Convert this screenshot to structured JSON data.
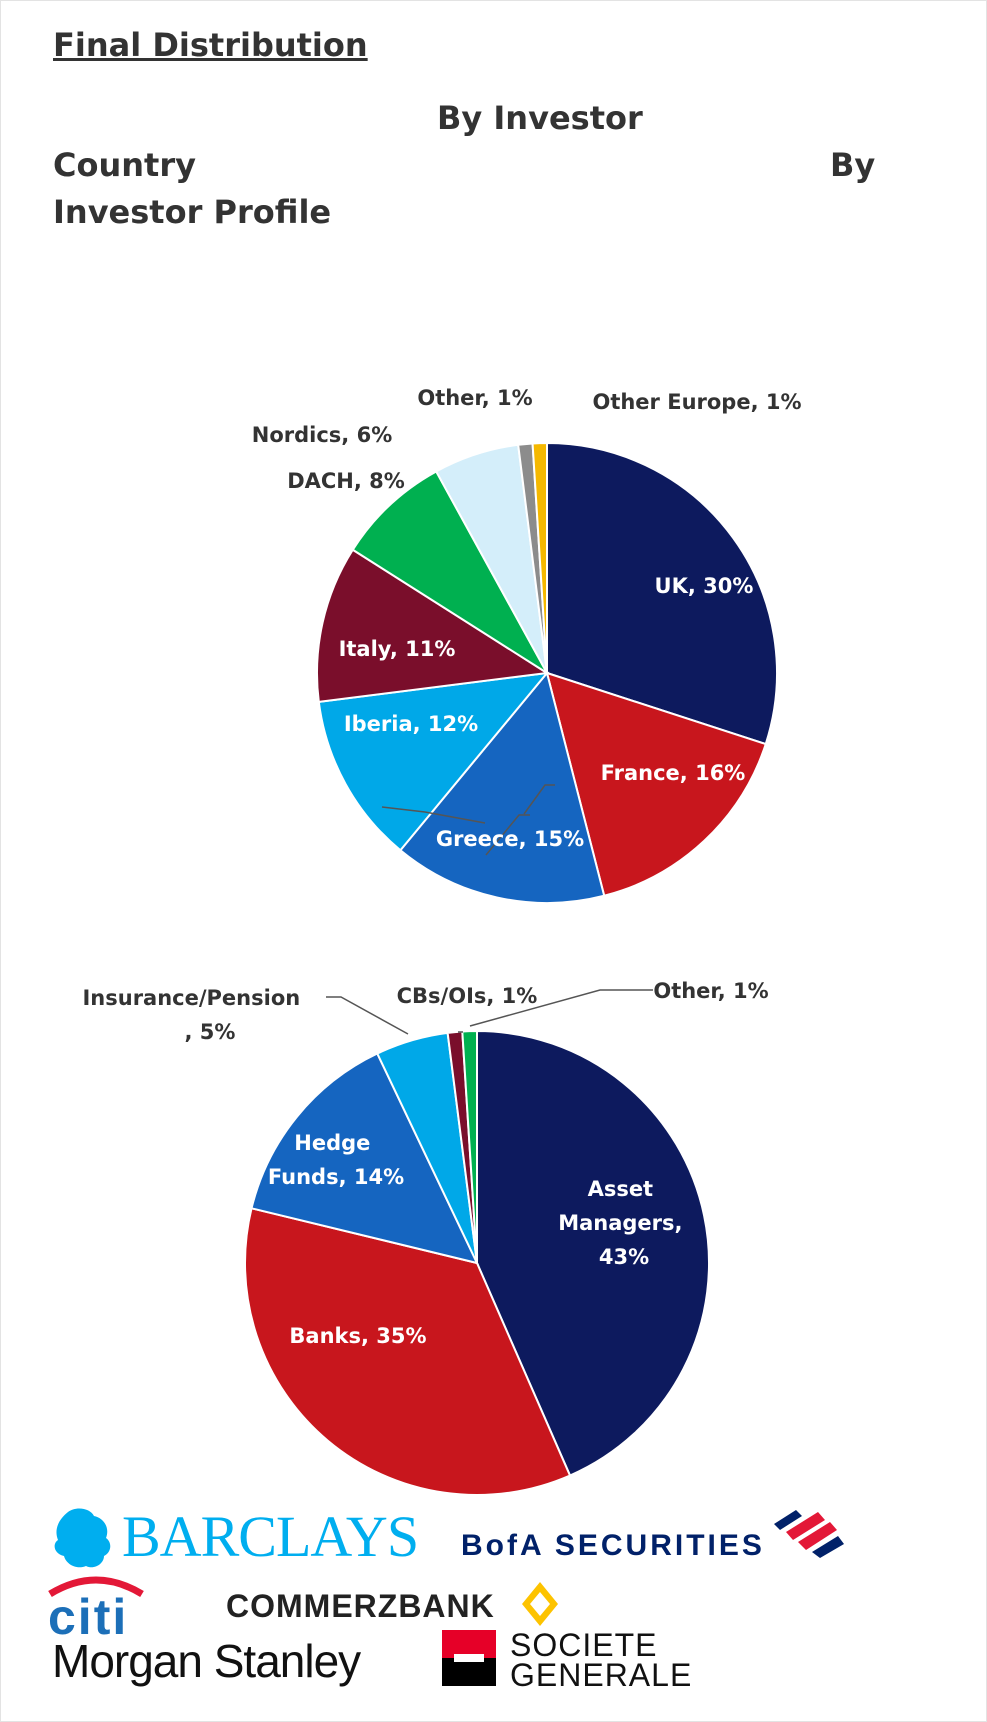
{
  "title": "Final Distribution",
  "headers": {
    "by_investor": "By Investor",
    "country": "Country",
    "by": "By",
    "investor_profile": "Investor Profile"
  },
  "chart_data": [
    {
      "type": "pie",
      "title": "",
      "slices": [
        {
          "label": "UK, 30%",
          "value": 30,
          "color": "#0d1a5e"
        },
        {
          "label": "France, 16%",
          "value": 16,
          "color": "#c8161d"
        },
        {
          "label": "Greece, 15%",
          "value": 15,
          "color": "#1565c0"
        },
        {
          "label": "Iberia, 12%",
          "value": 12,
          "color": "#00a8e8"
        },
        {
          "label": "Italy, 11%",
          "value": 11,
          "color": "#7a0e2b"
        },
        {
          "label": "DACH, 8%",
          "value": 8,
          "color": "#00b050"
        },
        {
          "label": "Nordics, 6%",
          "value": 6,
          "color": "#d4eefa"
        },
        {
          "label": "Other, 1%",
          "value": 1,
          "color": "#8c8c8c"
        },
        {
          "label": "Other Europe, 1%",
          "value": 1,
          "color": "#f5b800"
        }
      ]
    },
    {
      "type": "pie",
      "title": "",
      "slices": [
        {
          "label": "Asset Managers, 43%",
          "value": 43,
          "color": "#0d1a5e"
        },
        {
          "label": "Banks, 35%",
          "value": 35,
          "color": "#c8161d"
        },
        {
          "label": "Hedge Funds, 14%",
          "value": 14,
          "color": "#1565c0"
        },
        {
          "label": "Insurance/Pension, 5%",
          "value": 5,
          "color": "#00a8e8"
        },
        {
          "label": "CBs/OIs, 1%",
          "value": 1,
          "color": "#7a0e2b"
        },
        {
          "label": "Other, 1%",
          "value": 1,
          "color": "#00b050"
        }
      ]
    }
  ],
  "logos": {
    "barclays": "BARCLAYS",
    "bofa": "BofA SECURITIES",
    "citi": "citi",
    "commerzbank": "COMMERZBANK",
    "morgan_stanley": "Morgan Stanley",
    "socgen_line1": "SOCIETE",
    "socgen_line2": "GENERALE"
  }
}
